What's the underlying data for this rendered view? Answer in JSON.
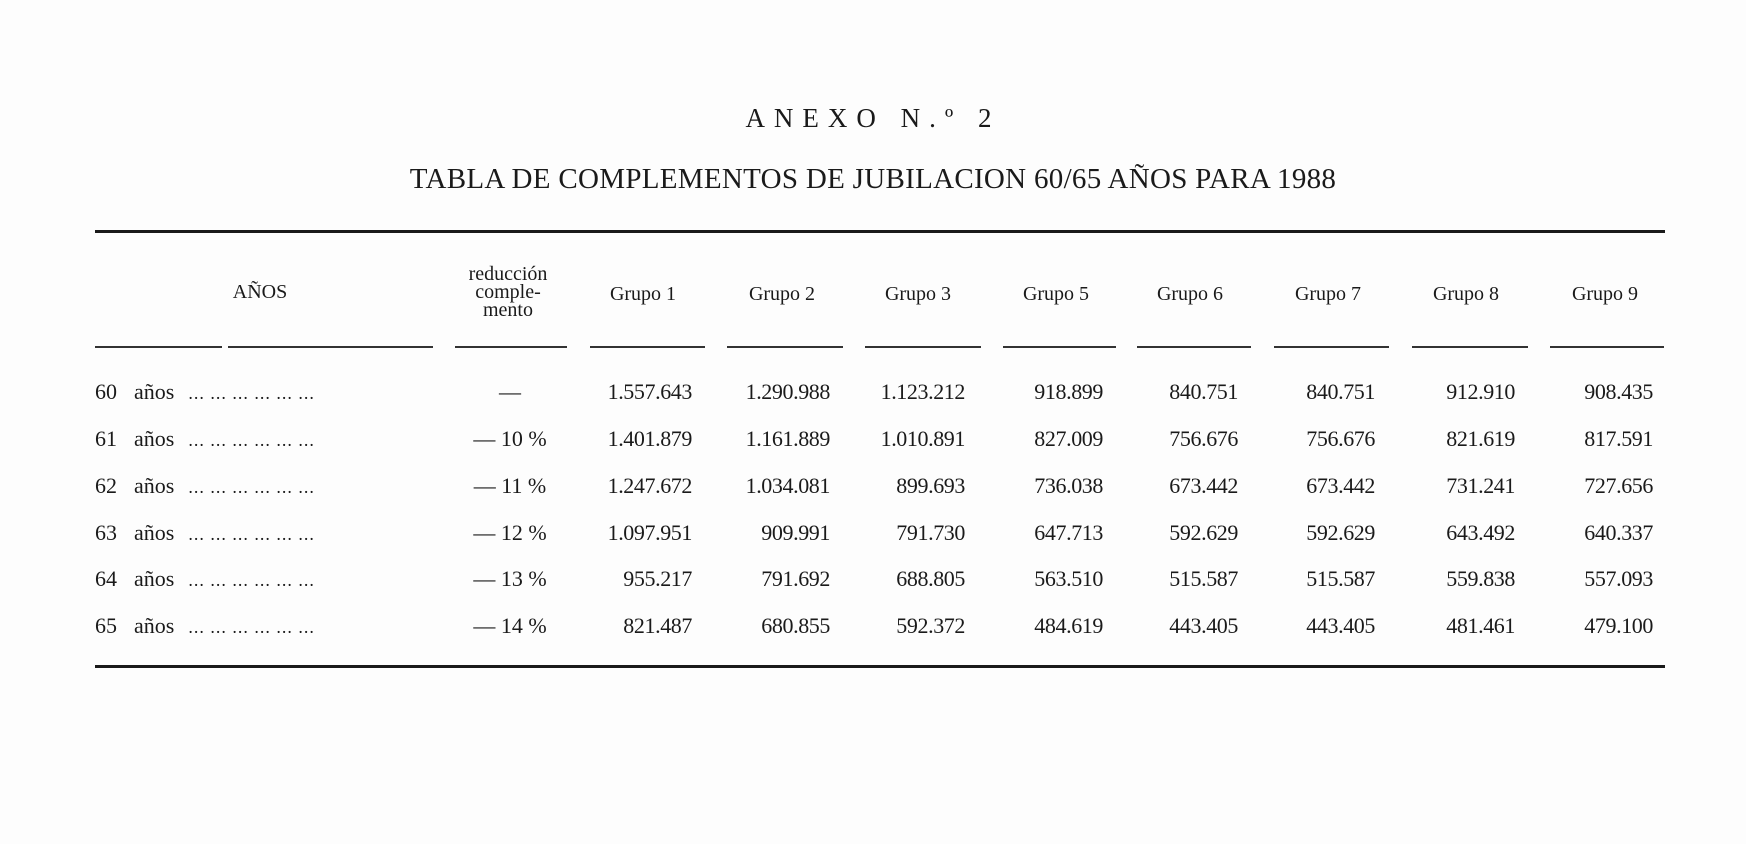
{
  "annex_title": "ANEXO N.º 2",
  "table_title": "TABLA DE COMPLEMENTOS DE JUBILACION 60/65 AÑOS PARA 1988",
  "headers": {
    "anios": "AÑOS",
    "reduccion_lines": [
      "reducción",
      "comple-",
      "mento"
    ],
    "groups": [
      "Grupo 1",
      "Grupo 2",
      "Grupo 3",
      "Grupo 5",
      "Grupo 6",
      "Grupo 7",
      "Grupo 8",
      "Grupo 9"
    ]
  },
  "rows": [
    {
      "num": "60",
      "label": "años",
      "dots": "... ... ... ... ... ...",
      "reduccion": "—",
      "values": [
        "1.557.643",
        "1.290.988",
        "1.123.212",
        "918.899",
        "840.751",
        "840.751",
        "912.910",
        "908.435"
      ]
    },
    {
      "num": "61",
      "label": "años",
      "dots": "... ... ... ... ... ...",
      "reduccion": "— 10 %",
      "values": [
        "1.401.879",
        "1.161.889",
        "1.010.891",
        "827.009",
        "756.676",
        "756.676",
        "821.619",
        "817.591"
      ]
    },
    {
      "num": "62",
      "label": "años",
      "dots": "... ... ... ... ... ...",
      "reduccion": "— 11 %",
      "values": [
        "1.247.672",
        "1.034.081",
        "899.693",
        "736.038",
        "673.442",
        "673.442",
        "731.241",
        "727.656"
      ]
    },
    {
      "num": "63",
      "label": "años",
      "dots": "... ... ... ... ... ...",
      "reduccion": "— 12 %",
      "values": [
        "1.097.951",
        "909.991",
        "791.730",
        "647.713",
        "592.629",
        "592.629",
        "643.492",
        "640.337"
      ]
    },
    {
      "num": "64",
      "label": "años",
      "dots": "... ... ... ... ... ...",
      "reduccion": "— 13 %",
      "values": [
        "955.217",
        "791.692",
        "688.805",
        "563.510",
        "515.587",
        "515.587",
        "559.838",
        "557.093"
      ]
    },
    {
      "num": "65",
      "label": "años",
      "dots": "... ... ... ... ... ...",
      "reduccion": "— 14 %",
      "values": [
        "821.487",
        "680.855",
        "592.372",
        "484.619",
        "443.405",
        "443.405",
        "481.461",
        "479.100"
      ]
    }
  ]
}
